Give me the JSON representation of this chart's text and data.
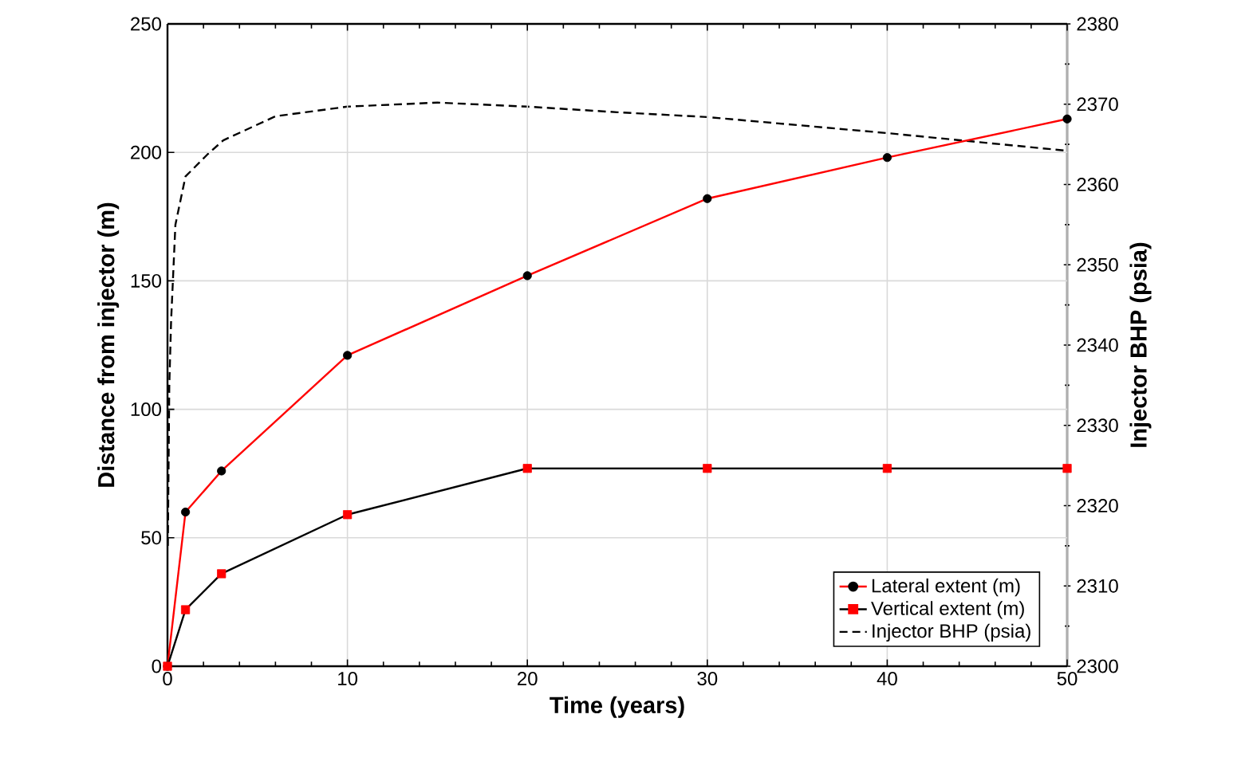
{
  "chart_data": {
    "type": "line",
    "xlabel": "Time (years)",
    "ylabel": "Distance from injector (m)",
    "y2label": "Injector BHP (psia)",
    "xlim": [
      0,
      50
    ],
    "xticks": [
      0,
      10,
      20,
      30,
      40,
      50
    ],
    "ylim": [
      0,
      250
    ],
    "yticks": [
      0,
      50,
      100,
      150,
      200,
      250
    ],
    "y2lim": [
      2300,
      2380
    ],
    "y2ticks": [
      2300,
      2310,
      2320,
      2330,
      2340,
      2350,
      2360,
      2370,
      2380
    ],
    "grid": true,
    "legend": "bottom right",
    "series": [
      {
        "name": "Lateral extent (m)",
        "color": "#ff0000",
        "colors": [
          "#000000",
          "#000000",
          "#000000",
          "#000000",
          "#000000",
          "#000000",
          "#000000",
          "#000000"
        ],
        "marker": "circle",
        "line_style": "solid",
        "x": [
          0,
          1,
          3,
          10,
          20,
          30,
          40,
          50
        ],
        "values": [
          0,
          60,
          76,
          121,
          152,
          182,
          198,
          213
        ]
      },
      {
        "name": "Vertical extent (m)",
        "color": "#000000",
        "colors": [
          "#ff0000",
          "#ff0000",
          "#ff0000",
          "#ff0000",
          "#ff0000",
          "#ff0000",
          "#ff0000",
          "#ff0000"
        ],
        "marker": "square",
        "line_style": "solid",
        "x": [
          0,
          1,
          3,
          10,
          20,
          30,
          40,
          50
        ],
        "values": [
          0,
          22,
          36,
          59,
          77,
          77,
          77,
          77
        ]
      },
      {
        "name": "Injector BHP (psia)",
        "color": "#000000",
        "marker": "none",
        "line_style": "dashed",
        "axis": "y2",
        "x": [
          0.02,
          0.1,
          0.2,
          0.44,
          1,
          2.2,
          3.1,
          6,
          10,
          15,
          20,
          25,
          30,
          40,
          50
        ],
        "values": [
          2315,
          2335,
          2343,
          2355,
          2361,
          2363.7,
          2365.5,
          2368.5,
          2369.7,
          2370.2,
          2369.7,
          2369,
          2368.4,
          2366.4,
          2364.2
        ]
      }
    ]
  }
}
